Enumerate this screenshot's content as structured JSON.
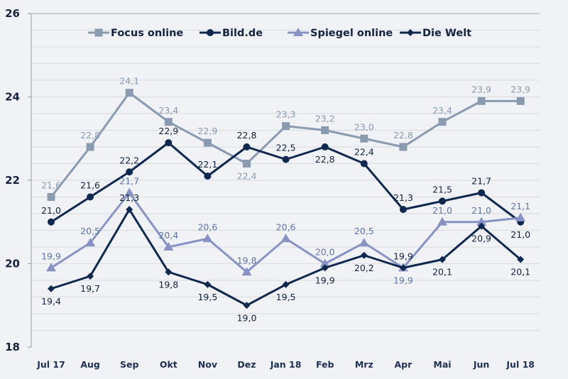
{
  "chart_data": {
    "type": "line",
    "title": "",
    "xlabel": "",
    "ylabel": "",
    "ylim": [
      18,
      26
    ],
    "yticks": [
      18,
      20,
      22,
      24,
      26
    ],
    "grid": true,
    "legend_position": "top-center",
    "categories": [
      "Jul 17",
      "Aug",
      "Sep",
      "Okt",
      "Nov",
      "Dez",
      "Jan 18",
      "Feb",
      "Mrz",
      "Apr",
      "Mai",
      "Jun",
      "Jul 18"
    ],
    "series": [
      {
        "name": "Focus online",
        "marker": "square",
        "color": "#8a9bb0",
        "label_color": "#8a9bb0",
        "values": [
          21.6,
          22.8,
          24.1,
          23.4,
          22.9,
          22.4,
          23.3,
          23.2,
          23.0,
          22.8,
          23.4,
          23.9,
          23.9
        ],
        "labels": [
          "21,6",
          "22,8",
          "24,1",
          "23,4",
          "22,9",
          "22,4",
          "23,3",
          "23,2",
          "23,0",
          "22,8",
          "23,4",
          "23,9",
          "23,9"
        ],
        "label_pos": [
          "above",
          "above",
          "above",
          "above",
          "above",
          "below",
          "above",
          "above",
          "above",
          "above",
          "above",
          "above",
          "above"
        ]
      },
      {
        "name": "Bild.de",
        "marker": "circle",
        "color": "#10284e",
        "label_color": "#10203a",
        "values": [
          21.0,
          21.6,
          22.2,
          22.9,
          22.1,
          22.8,
          22.5,
          22.8,
          22.4,
          21.3,
          21.5,
          21.7,
          21.0
        ],
        "labels": [
          "21,0",
          "21,6",
          "22,2",
          "22,9",
          "22,1",
          "22,8",
          "22,5",
          "22,8",
          "22,4",
          "21,3",
          "21,5",
          "21,7",
          "21,0"
        ],
        "label_pos": [
          "above",
          "above",
          "above",
          "above",
          "above",
          "above",
          "above",
          "below",
          "above",
          "above",
          "above",
          "above",
          "below"
        ]
      },
      {
        "name": "Spiegel online",
        "marker": "triangle",
        "color": "#8893c4",
        "label_color": "#5f74a6",
        "values": [
          19.9,
          20.5,
          21.7,
          20.4,
          20.6,
          19.8,
          20.6,
          20.0,
          20.5,
          19.9,
          21.0,
          21.0,
          21.1
        ],
        "labels": [
          "19,9",
          "20,5",
          "21,7",
          "20,4",
          "20,6",
          "19,8",
          "20,6",
          "20,0",
          "20,5",
          "19,9",
          "21,0",
          "21,0",
          "21,1"
        ],
        "label_pos": [
          "above",
          "above",
          "above",
          "above",
          "above",
          "above",
          "above",
          "above",
          "above",
          "below",
          "above",
          "above",
          "above"
        ]
      },
      {
        "name": "Die Welt",
        "marker": "diamond",
        "color": "#10284e",
        "label_color": "#10203a",
        "values": [
          19.4,
          19.7,
          21.3,
          19.8,
          19.5,
          19.0,
          19.5,
          19.9,
          20.2,
          19.9,
          20.1,
          20.9,
          20.1
        ],
        "labels": [
          "19,4",
          "19,7",
          "21,3",
          "19,8",
          "19,5",
          "19,0",
          "19,5",
          "19,9",
          "20,2",
          "19,9",
          "20,1",
          "20,9",
          "20,1"
        ],
        "label_pos": [
          "below",
          "below",
          "above",
          "below",
          "below",
          "below",
          "below",
          "below",
          "below",
          "above",
          "below",
          "below",
          "below"
        ]
      }
    ]
  }
}
